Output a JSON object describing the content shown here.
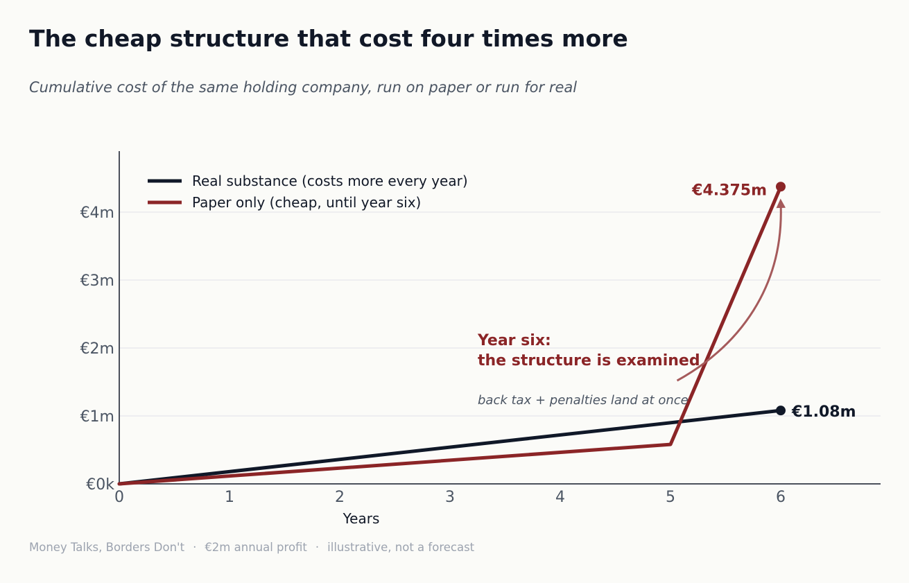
{
  "header": {
    "title": "The cheap structure that cost four times more",
    "subtitle": "Cumulative cost of the same holding company, run on paper or run for real"
  },
  "footer": {
    "source": "Money Talks, Borders Don't",
    "note1": "€2m annual profit",
    "note2": "illustrative, not a forecast",
    "separator": "·"
  },
  "colors": {
    "real": "#101828",
    "paper": "#8b2527",
    "grid": "#e5e7eb",
    "axis": "#111827"
  },
  "chart_data": {
    "type": "line",
    "xlabel": "Years",
    "ylabel": "",
    "xlim": [
      0,
      6.9
    ],
    "ylim": [
      0,
      4.9
    ],
    "x_ticks": [
      0,
      1,
      2,
      3,
      4,
      5,
      6
    ],
    "x_tick_labels": [
      "0",
      "1",
      "2",
      "3",
      "4",
      "5",
      "6"
    ],
    "y_ticks": [
      0,
      1,
      2,
      3,
      4
    ],
    "y_tick_labels": [
      "€0k",
      "€1m",
      "€2m",
      "€3m",
      "€4m"
    ],
    "grid": "horizontal",
    "legend_position": "top-left",
    "series": [
      {
        "name": "Real substance (costs more every year)",
        "color": "#101828",
        "x": [
          0,
          6
        ],
        "y": [
          0,
          1.08
        ],
        "end_label": "€1.08m"
      },
      {
        "name": "Paper only (cheap, until year six)",
        "color": "#8b2527",
        "x": [
          0,
          5,
          6
        ],
        "y": [
          0,
          0.58,
          4.375
        ],
        "end_label": "€4.375m"
      }
    ],
    "annotation": {
      "title_line1": "Year six:",
      "title_line2": "the structure is examined",
      "sub": "back tax + penalties land at once",
      "arrow_from": [
        5.06,
        1.52
      ],
      "arrow_to": [
        6,
        4.13
      ]
    }
  }
}
